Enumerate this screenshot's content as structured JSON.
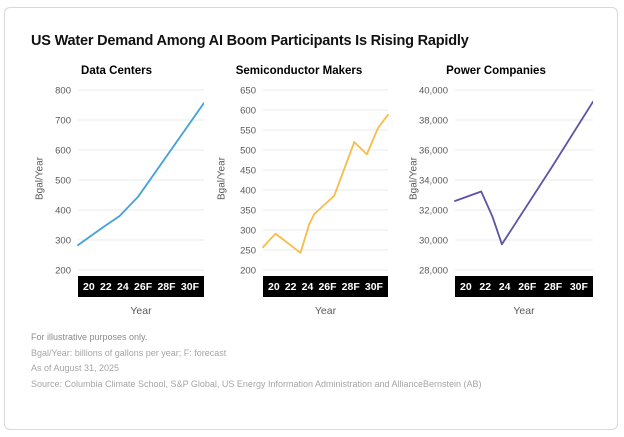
{
  "page": {
    "title": "US Water Demand Among AI Boom Participants Is Rising Rapidly",
    "footnotes": [
      "For illustrative purposes only.",
      "Bgal/Year: billions of gallons per year; F: forecast",
      "As of August 31, 2025",
      "Source: Columbia Climate School, S&P Global, US Energy Information Administration and AllianceBernstein (AB)"
    ]
  },
  "chart_data": [
    {
      "type": "line",
      "title": "Data Centers",
      "xlabel": "Year",
      "ylabel": "Bgal/Year",
      "ylim": [
        200,
        800
      ],
      "ystep": 100,
      "xlim": [
        20,
        30
      ],
      "x_axis_labels": [
        "20",
        "22",
        "24",
        "26F",
        "28F",
        "30F"
      ],
      "line_color": "#44A1DB",
      "grid": true,
      "points": [
        [
          20,
          283
        ],
        [
          22,
          343
        ],
        [
          23.3,
          380
        ],
        [
          24.8,
          446
        ],
        [
          30,
          757
        ]
      ]
    },
    {
      "type": "line",
      "title": "Semiconductor Makers",
      "xlabel": "Year",
      "ylabel": "Bgal/Year",
      "ylim": [
        200,
        650
      ],
      "ystep": 50,
      "xlim": [
        20,
        30
      ],
      "x_axis_labels": [
        "20",
        "22",
        "24",
        "26F",
        "28F",
        "30F"
      ],
      "line_color": "#F6BD4A",
      "grid": true,
      "points": [
        [
          20,
          257
        ],
        [
          21,
          291
        ],
        [
          23,
          243
        ],
        [
          23.7,
          315
        ],
        [
          24.1,
          340
        ],
        [
          25.7,
          386
        ],
        [
          27.3,
          520
        ],
        [
          28.3,
          489
        ],
        [
          29.2,
          555
        ],
        [
          30,
          588
        ]
      ]
    },
    {
      "type": "line",
      "title": "Power Companies",
      "xlabel": "Year",
      "ylabel": "Bgal/Year",
      "ylim": [
        28000,
        40000
      ],
      "ystep": 2000,
      "xlim": [
        20,
        30
      ],
      "x_axis_labels": [
        "20",
        "22",
        "24",
        "26F",
        "28F",
        "30F"
      ],
      "line_color": "#5D54A5",
      "grid": true,
      "points": [
        [
          20,
          32600
        ],
        [
          21.9,
          33230
        ],
        [
          22.7,
          31590
        ],
        [
          23.4,
          29710
        ],
        [
          27,
          34830
        ],
        [
          30,
          39220
        ]
      ]
    }
  ]
}
